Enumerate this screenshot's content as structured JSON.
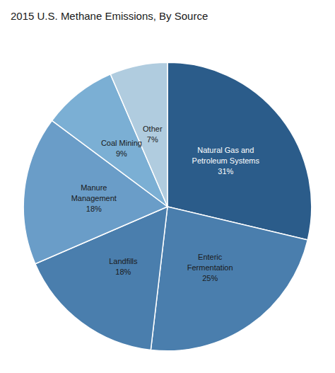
{
  "chart_data": {
    "type": "pie",
    "title": "2015 U.S. Methane Emissions, By Source",
    "categories": [
      "Natural Gas and\nPetroleum Systems",
      "Enteric\nFermentation",
      "Landfills",
      "Manure\nManagement",
      "Coal Mining",
      "Other"
    ],
    "values": [
      31,
      25,
      18,
      18,
      9,
      7
    ],
    "value_labels": [
      "31%",
      "25%",
      "18%",
      "18%",
      "9%",
      "7%"
    ],
    "colors": [
      "#2B5C8A",
      "#4A7EAD",
      "#4A7EAD",
      "#6A9DC8",
      "#7BAFD4",
      "#B0CCDF"
    ],
    "data_labels": true,
    "legend": false
  }
}
